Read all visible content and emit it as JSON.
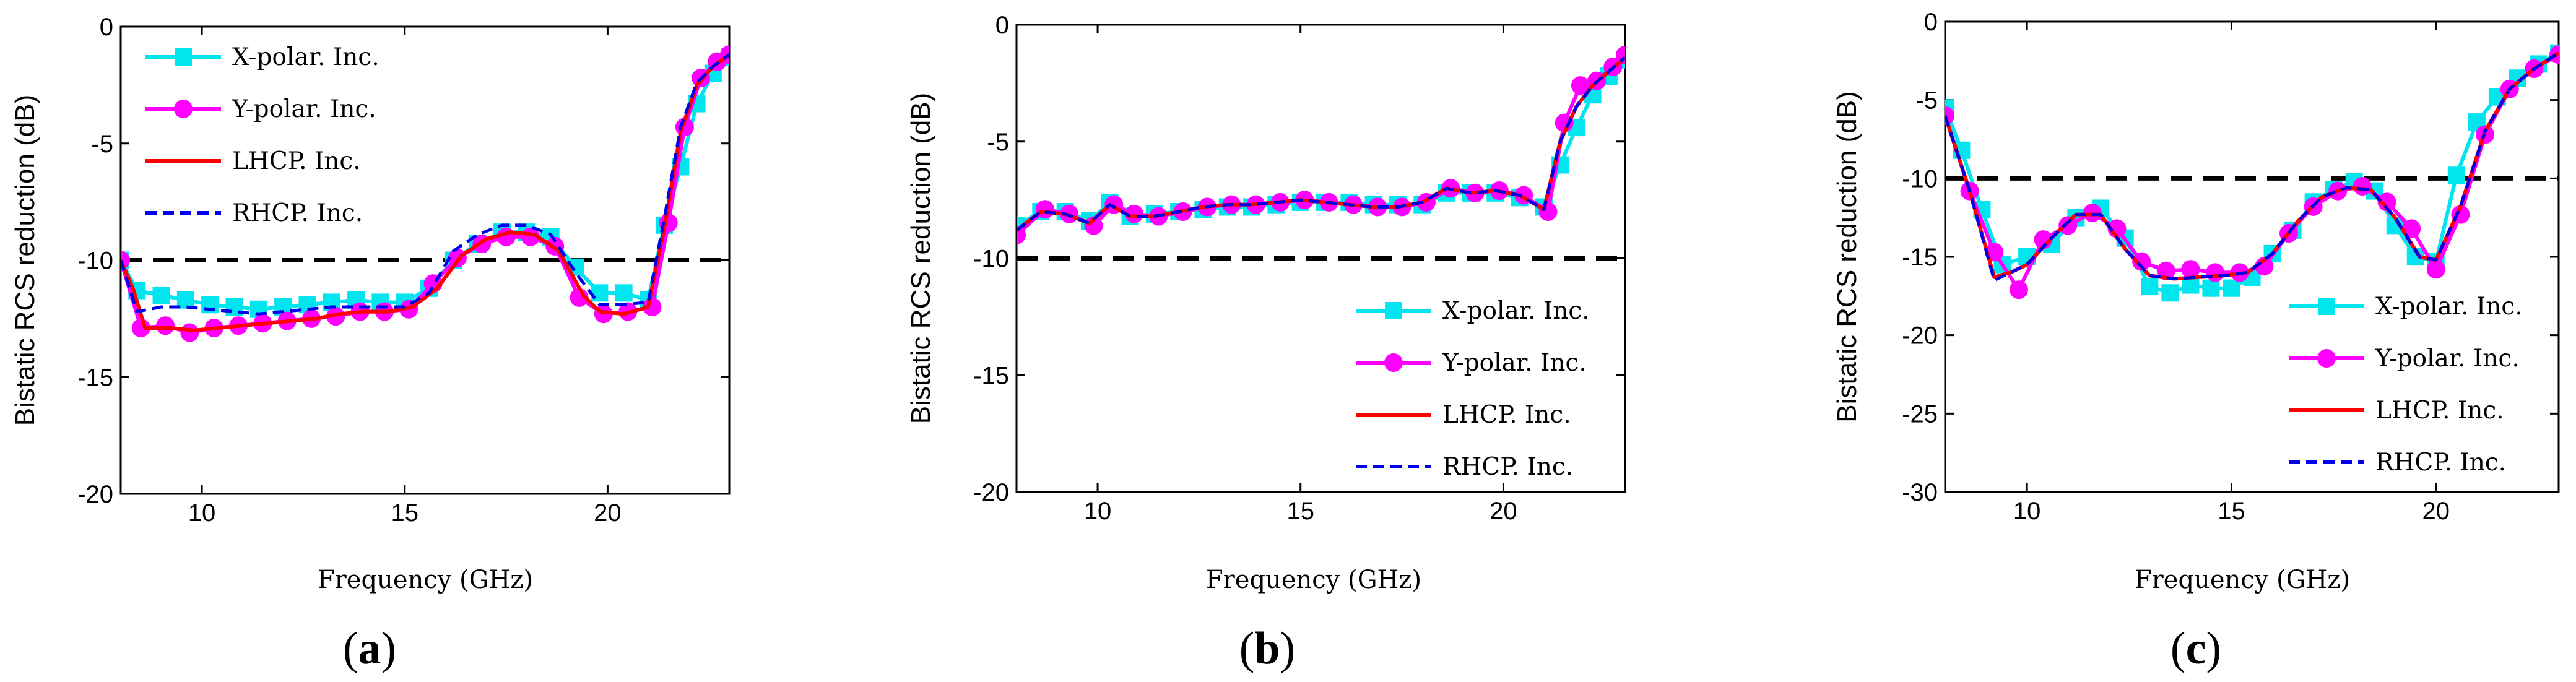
{
  "chart_data": [
    {
      "type": "line",
      "panel": "(a)",
      "panel_letter": "a",
      "xlabel": "Frequency (GHz)",
      "ylabel": "Bistatic RCS reduction (dB)",
      "xlim": [
        8,
        23
      ],
      "ylim": [
        -20,
        0
      ],
      "xticks": [
        10,
        15,
        20
      ],
      "yticks": [
        0,
        -5,
        -10,
        -15,
        -20
      ],
      "reference_line": -10,
      "legend_position": "top-left",
      "legend": [
        "X-polar. Inc.",
        "Y-polar. Inc.",
        "LHCP. Inc.",
        "RHCP. Inc."
      ],
      "series": [
        {
          "name": "X-polar. Inc.",
          "color": "#00e5ee",
          "style": "solid",
          "marker": "square",
          "x": [
            8.0,
            8.4,
            9.0,
            9.6,
            10.2,
            10.8,
            11.4,
            12.0,
            12.6,
            13.2,
            13.8,
            14.4,
            15.0,
            15.6,
            16.2,
            16.8,
            17.4,
            18.0,
            18.6,
            19.2,
            19.8,
            20.4,
            21.0,
            21.4,
            21.8,
            22.2,
            22.6,
            23.0
          ],
          "y": [
            -10.0,
            -11.3,
            -11.5,
            -11.7,
            -11.9,
            -12.0,
            -12.1,
            -12.0,
            -11.9,
            -11.8,
            -11.7,
            -11.8,
            -11.8,
            -11.2,
            -10.0,
            -9.3,
            -8.8,
            -8.8,
            -9.0,
            -10.3,
            -11.4,
            -11.4,
            -11.7,
            -8.5,
            -6.0,
            -3.3,
            -2.0,
            -1.3
          ]
        },
        {
          "name": "Y-polar. Inc.",
          "color": "#ff00ff",
          "style": "solid",
          "marker": "circle",
          "x": [
            8.0,
            8.5,
            9.1,
            9.7,
            10.3,
            10.9,
            11.5,
            12.1,
            12.7,
            13.3,
            13.9,
            14.5,
            15.1,
            15.7,
            16.3,
            16.9,
            17.5,
            18.1,
            18.7,
            19.3,
            19.9,
            20.5,
            21.1,
            21.5,
            21.9,
            22.3,
            22.7,
            23.0
          ],
          "y": [
            -10.0,
            -12.9,
            -12.8,
            -13.1,
            -12.9,
            -12.8,
            -12.7,
            -12.6,
            -12.5,
            -12.4,
            -12.2,
            -12.2,
            -12.1,
            -11.0,
            -9.9,
            -9.3,
            -9.0,
            -9.0,
            -9.4,
            -11.6,
            -12.3,
            -12.2,
            -12.0,
            -8.4,
            -4.3,
            -2.2,
            -1.5,
            -1.2
          ]
        },
        {
          "name": "LHCP. Inc.",
          "color": "#ff0000",
          "style": "solid",
          "marker": "none",
          "x": [
            8.0,
            8.3,
            8.6,
            9.2,
            9.8,
            10.4,
            11.0,
            11.6,
            12.2,
            12.8,
            13.4,
            14.0,
            14.6,
            15.2,
            15.8,
            16.4,
            17.0,
            17.6,
            18.2,
            18.8,
            19.4,
            19.8,
            20.4,
            21.0,
            21.4,
            21.8,
            22.2,
            22.6,
            23.0
          ],
          "y": [
            -10.0,
            -11.2,
            -12.9,
            -12.9,
            -13.0,
            -12.9,
            -12.8,
            -12.7,
            -12.6,
            -12.5,
            -12.3,
            -12.2,
            -12.2,
            -12.0,
            -11.2,
            -9.8,
            -9.1,
            -8.8,
            -8.9,
            -9.6,
            -11.5,
            -12.2,
            -12.3,
            -12.0,
            -8.6,
            -4.5,
            -2.5,
            -1.7,
            -1.2
          ]
        },
        {
          "name": "RHCP. Inc.",
          "color": "#0000ee",
          "style": "dashed",
          "marker": "none",
          "x": [
            8.0,
            8.4,
            9.0,
            9.6,
            10.2,
            10.8,
            11.4,
            12.0,
            12.6,
            13.2,
            13.8,
            14.4,
            15.0,
            15.6,
            16.2,
            16.8,
            17.4,
            18.0,
            18.6,
            19.2,
            19.8,
            20.4,
            21.0,
            21.4,
            21.8,
            22.2,
            22.6,
            23.0
          ],
          "y": [
            -10.0,
            -12.2,
            -12.0,
            -12.0,
            -12.1,
            -12.2,
            -12.3,
            -12.2,
            -12.1,
            -12.0,
            -12.0,
            -12.0,
            -12.0,
            -11.4,
            -9.6,
            -8.9,
            -8.5,
            -8.5,
            -8.9,
            -10.5,
            -11.9,
            -11.9,
            -11.8,
            -8.2,
            -4.3,
            -2.4,
            -1.7,
            -1.2
          ]
        }
      ]
    },
    {
      "type": "line",
      "panel": "(b)",
      "panel_letter": "b",
      "xlabel": "Frequency (GHz)",
      "ylabel": "Bistatic RCS reduction (dB)",
      "xlim": [
        8,
        23
      ],
      "ylim": [
        -20,
        0
      ],
      "xticks": [
        10,
        15,
        20
      ],
      "yticks": [
        0,
        -5,
        -10,
        -15,
        -20
      ],
      "reference_line": -10,
      "legend_position": "bottom-right",
      "legend": [
        "X-polar. Inc.",
        "Y-polar. Inc.",
        "LHCP. Inc.",
        "RHCP. Inc."
      ],
      "series": [
        {
          "name": "X-polar. Inc.",
          "color": "#00e5ee",
          "style": "solid",
          "marker": "square",
          "x": [
            8.0,
            8.6,
            9.2,
            9.8,
            10.3,
            10.8,
            11.4,
            12.0,
            12.6,
            13.2,
            13.8,
            14.4,
            15.0,
            15.6,
            16.2,
            16.8,
            17.4,
            18.0,
            18.6,
            19.2,
            19.8,
            20.4,
            21.0,
            21.4,
            21.8,
            22.2,
            22.6,
            23.0
          ],
          "y": [
            -8.6,
            -8.0,
            -8.0,
            -8.4,
            -7.6,
            -8.2,
            -8.1,
            -8.0,
            -7.9,
            -7.8,
            -7.8,
            -7.7,
            -7.6,
            -7.6,
            -7.6,
            -7.7,
            -7.7,
            -7.7,
            -7.2,
            -7.2,
            -7.2,
            -7.4,
            -7.8,
            -6.0,
            -4.4,
            -3.0,
            -2.2,
            -1.5
          ]
        },
        {
          "name": "Y-polar. Inc.",
          "color": "#ff00ff",
          "style": "solid",
          "marker": "circle",
          "x": [
            8.0,
            8.7,
            9.3,
            9.9,
            10.4,
            10.9,
            11.5,
            12.1,
            12.7,
            13.3,
            13.9,
            14.5,
            15.1,
            15.7,
            16.3,
            16.9,
            17.5,
            18.1,
            18.7,
            19.3,
            19.9,
            20.5,
            21.1,
            21.5,
            21.9,
            22.3,
            22.7,
            23.0
          ],
          "y": [
            -9.0,
            -7.9,
            -8.1,
            -8.6,
            -7.7,
            -8.1,
            -8.2,
            -8.0,
            -7.8,
            -7.7,
            -7.7,
            -7.6,
            -7.5,
            -7.6,
            -7.7,
            -7.8,
            -7.8,
            -7.6,
            -7.0,
            -7.2,
            -7.1,
            -7.3,
            -8.0,
            -4.2,
            -2.6,
            -2.4,
            -1.8,
            -1.3
          ]
        },
        {
          "name": "LHCP. Inc.",
          "color": "#ff0000",
          "style": "solid",
          "marker": "none",
          "x": [
            8.0,
            8.6,
            9.2,
            9.8,
            10.3,
            10.8,
            11.4,
            12.0,
            12.6,
            13.2,
            13.8,
            14.4,
            15.0,
            15.6,
            16.2,
            16.8,
            17.4,
            18.0,
            18.6,
            19.2,
            19.8,
            20.4,
            21.0,
            21.4,
            21.8,
            22.2,
            22.6,
            23.0
          ],
          "y": [
            -8.8,
            -8.0,
            -8.1,
            -8.5,
            -7.7,
            -8.2,
            -8.2,
            -8.0,
            -7.8,
            -7.7,
            -7.7,
            -7.6,
            -7.5,
            -7.6,
            -7.7,
            -7.8,
            -7.8,
            -7.6,
            -7.0,
            -7.2,
            -7.1,
            -7.3,
            -7.9,
            -5.0,
            -3.5,
            -2.6,
            -2.0,
            -1.4
          ]
        },
        {
          "name": "RHCP. Inc.",
          "color": "#0000ee",
          "style": "dashed",
          "marker": "none",
          "x": [
            8.0,
            8.6,
            9.2,
            9.8,
            10.3,
            10.8,
            11.4,
            12.0,
            12.6,
            13.2,
            13.8,
            14.4,
            15.0,
            15.6,
            16.2,
            16.8,
            17.4,
            18.0,
            18.6,
            19.2,
            19.8,
            20.4,
            21.0,
            21.4,
            21.8,
            22.2,
            22.6,
            23.0
          ],
          "y": [
            -8.8,
            -8.0,
            -8.1,
            -8.5,
            -7.7,
            -8.2,
            -8.2,
            -8.0,
            -7.8,
            -7.7,
            -7.7,
            -7.6,
            -7.5,
            -7.6,
            -7.7,
            -7.8,
            -7.8,
            -7.6,
            -7.0,
            -7.2,
            -7.1,
            -7.3,
            -7.9,
            -5.0,
            -3.5,
            -2.6,
            -2.0,
            -1.4
          ]
        }
      ]
    },
    {
      "type": "line",
      "panel": "(c)",
      "panel_letter": "c",
      "xlabel": "Frequency (GHz)",
      "ylabel": "Bistatic RCS reduction (dB)",
      "xlim": [
        8,
        23
      ],
      "ylim": [
        -30,
        0
      ],
      "xticks": [
        10,
        15,
        20
      ],
      "yticks": [
        0,
        -5,
        -10,
        -15,
        -20,
        -25,
        -30
      ],
      "reference_line": -10,
      "legend_position": "bottom-right",
      "legend": [
        "X-polar. Inc.",
        "Y-polar. Inc.",
        "LHCP. Inc.",
        "RHCP. Inc."
      ],
      "series": [
        {
          "name": "X-polar. Inc.",
          "color": "#00e5ee",
          "style": "solid",
          "marker": "square",
          "x": [
            8.0,
            8.4,
            8.9,
            9.4,
            10.0,
            10.6,
            11.2,
            11.8,
            12.4,
            13.0,
            13.5,
            14.0,
            14.5,
            15.0,
            15.5,
            16.0,
            16.5,
            17.0,
            17.5,
            18.0,
            18.5,
            19.0,
            19.5,
            20.0,
            20.5,
            21.0,
            21.5,
            22.0,
            22.5,
            23.0
          ],
          "y": [
            -5.5,
            -8.2,
            -12.0,
            -15.5,
            -15.0,
            -14.2,
            -12.5,
            -11.9,
            -13.8,
            -16.9,
            -17.3,
            -16.8,
            -17.0,
            -17.0,
            -16.3,
            -14.8,
            -13.3,
            -11.5,
            -10.7,
            -10.2,
            -10.8,
            -13.0,
            -15.0,
            -15.3,
            -9.8,
            -6.4,
            -4.8,
            -3.6,
            -2.7,
            -2.0
          ]
        },
        {
          "name": "Y-polar. Inc.",
          "color": "#ff00ff",
          "style": "solid",
          "marker": "circle",
          "x": [
            8.0,
            8.6,
            9.2,
            9.8,
            10.4,
            11.0,
            11.6,
            12.2,
            12.8,
            13.4,
            14.0,
            14.6,
            15.2,
            15.8,
            16.4,
            17.0,
            17.6,
            18.2,
            18.8,
            19.4,
            20.0,
            20.6,
            21.2,
            21.8,
            22.4,
            23.0
          ],
          "y": [
            -6.0,
            -10.8,
            -14.7,
            -17.1,
            -13.9,
            -13.0,
            -12.2,
            -13.2,
            -15.3,
            -15.9,
            -15.8,
            -16.0,
            -16.0,
            -15.6,
            -13.5,
            -11.8,
            -10.8,
            -10.5,
            -11.5,
            -13.2,
            -15.8,
            -12.3,
            -7.2,
            -4.3,
            -3.0,
            -2.1
          ]
        },
        {
          "name": "LHCP. Inc.",
          "color": "#ff0000",
          "style": "solid",
          "marker": "none",
          "x": [
            8.0,
            8.6,
            9.2,
            9.6,
            10.0,
            10.6,
            11.2,
            11.8,
            12.4,
            13.0,
            13.6,
            14.2,
            14.8,
            15.4,
            16.0,
            16.6,
            17.2,
            17.8,
            18.4,
            19.0,
            19.6,
            20.0,
            20.6,
            21.2,
            21.8,
            22.4,
            23.0
          ],
          "y": [
            -6.0,
            -10.8,
            -16.3,
            -16.0,
            -15.5,
            -13.8,
            -12.3,
            -12.3,
            -14.5,
            -16.2,
            -16.4,
            -16.3,
            -16.2,
            -16.0,
            -14.8,
            -12.8,
            -11.2,
            -10.6,
            -10.7,
            -12.5,
            -15.0,
            -15.2,
            -11.8,
            -7.0,
            -4.3,
            -3.0,
            -2.0
          ]
        },
        {
          "name": "RHCP. Inc.",
          "color": "#0000ee",
          "style": "dashed",
          "marker": "none",
          "x": [
            8.0,
            8.6,
            9.2,
            9.6,
            10.0,
            10.6,
            11.2,
            11.8,
            12.4,
            13.0,
            13.6,
            14.2,
            14.8,
            15.4,
            16.0,
            16.6,
            17.2,
            17.8,
            18.4,
            19.0,
            19.6,
            20.0,
            20.6,
            21.2,
            21.8,
            22.4,
            23.0
          ],
          "y": [
            -6.0,
            -10.8,
            -16.5,
            -16.0,
            -15.5,
            -13.8,
            -12.3,
            -12.3,
            -14.5,
            -16.2,
            -16.4,
            -16.3,
            -16.2,
            -16.0,
            -14.8,
            -12.8,
            -11.2,
            -10.6,
            -10.7,
            -12.5,
            -15.0,
            -15.2,
            -11.8,
            -7.0,
            -4.3,
            -3.0,
            -2.0
          ]
        }
      ]
    }
  ]
}
